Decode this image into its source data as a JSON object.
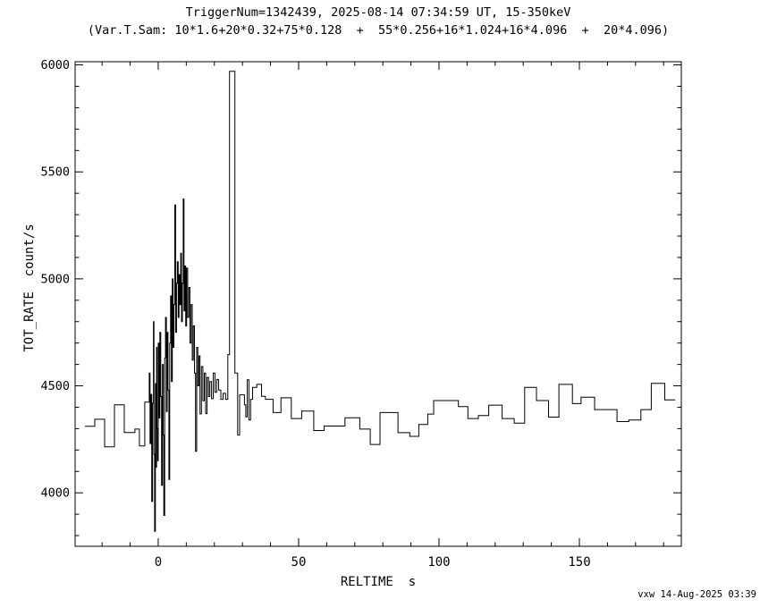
{
  "page": {
    "background_color": "#ffffff",
    "foreground_color": "#000000"
  },
  "header": {
    "title_line1": "TriggerNum=1342439, 2025-08-14 07:34:59 UT, 15-350keV",
    "title_line2": "(Var.T.Sam: 10*1.6+20*0.32+75*0.128  +  55*0.256+16*1.024+16*4.096  +  20*4.096)"
  },
  "footer": {
    "credit": "vxw 14-Aug-2025 03:39"
  },
  "chart_data": {
    "type": "line",
    "style": "step-histogram",
    "title": "TriggerNum=1342439, 2025-08-14 07:34:59 UT, 15-350keV",
    "subtitle": "(Var.T.Sam: 10*1.6+20*0.32+75*0.128  +  55*0.256+16*1.024+16*4.096  +  20*4.096)",
    "xlabel": "RELTIME  s",
    "ylabel": "TOT_RATE  count/s",
    "xlim": [
      -29.6,
      186.3
    ],
    "ylim": [
      3750,
      6015
    ],
    "x_major_ticks": [
      0,
      50,
      100,
      150
    ],
    "x_minor_step": 10,
    "y_major_ticks": [
      4000,
      4500,
      5000,
      5500,
      6000
    ],
    "y_minor_step": 100,
    "grid": false,
    "legend": "none",
    "line_color": "#000000",
    "background": "#ffffff",
    "end_time": 184.1,
    "points": [
      [
        -26.1,
        4311
      ],
      [
        -22.6,
        4344
      ],
      [
        -19.1,
        4215
      ],
      [
        -15.6,
        4411
      ],
      [
        -12.1,
        4282
      ],
      [
        -8.3,
        4298
      ],
      [
        -6.7,
        4219
      ],
      [
        -4.8,
        4424
      ],
      [
        -3.2,
        4560
      ],
      [
        -2.9,
        4230
      ],
      [
        -2.6,
        4460
      ],
      [
        -2.3,
        3960
      ],
      [
        -2.0,
        4420
      ],
      [
        -1.7,
        4800
      ],
      [
        -1.5,
        4180
      ],
      [
        -1.3,
        3820
      ],
      [
        -1.0,
        4510
      ],
      [
        -0.8,
        4120
      ],
      [
        -0.6,
        4680
      ],
      [
        -0.4,
        4300
      ],
      [
        -0.2,
        4150
      ],
      [
        0.0,
        4700
      ],
      [
        0.3,
        4350
      ],
      [
        0.6,
        4750
      ],
      [
        0.9,
        4450
      ],
      [
        1.2,
        4035
      ],
      [
        1.5,
        4600
      ],
      [
        1.8,
        4270
      ],
      [
        2.0,
        3894
      ],
      [
        2.3,
        4630
      ],
      [
        2.6,
        4820
      ],
      [
        2.9,
        4380
      ],
      [
        3.2,
        4750
      ],
      [
        3.5,
        4480
      ],
      [
        3.8,
        4062
      ],
      [
        4.1,
        4700
      ],
      [
        4.4,
        4920
      ],
      [
        4.7,
        4520
      ],
      [
        5.0,
        5000
      ],
      [
        5.3,
        4680
      ],
      [
        5.6,
        4880
      ],
      [
        5.9,
        5345
      ],
      [
        6.2,
        4750
      ],
      [
        6.5,
        4980
      ],
      [
        6.8,
        5080
      ],
      [
        7.1,
        4820
      ],
      [
        7.4,
        5020
      ],
      [
        7.7,
        4880
      ],
      [
        8.0,
        5120
      ],
      [
        8.3,
        4800
      ],
      [
        8.6,
        4980
      ],
      [
        8.9,
        5373
      ],
      [
        9.2,
        4850
      ],
      [
        9.5,
        5060
      ],
      [
        9.8,
        4780
      ],
      [
        10.1,
        5050
      ],
      [
        10.5,
        4820
      ],
      [
        10.9,
        4960
      ],
      [
        11.3,
        4700
      ],
      [
        11.7,
        4880
      ],
      [
        12.1,
        4620
      ],
      [
        12.5,
        4780
      ],
      [
        12.9,
        4560
      ],
      [
        13.3,
        4194
      ],
      [
        13.7,
        4680
      ],
      [
        14.1,
        4500
      ],
      [
        14.5,
        4640
      ],
      [
        14.9,
        4369
      ],
      [
        15.4,
        4590
      ],
      [
        15.9,
        4430
      ],
      [
        16.4,
        4560
      ],
      [
        16.9,
        4370
      ],
      [
        17.4,
        4540
      ],
      [
        17.9,
        4450
      ],
      [
        18.4,
        4520
      ],
      [
        19.0,
        4440
      ],
      [
        19.6,
        4560
      ],
      [
        20.2,
        4470
      ],
      [
        20.8,
        4530
      ],
      [
        21.5,
        4480
      ],
      [
        22.3,
        4437
      ],
      [
        23.1,
        4465
      ],
      [
        24.0,
        4437
      ],
      [
        24.8,
        4646
      ],
      [
        25.4,
        5970
      ],
      [
        27.3,
        4560
      ],
      [
        28.3,
        4270
      ],
      [
        29.0,
        4458
      ],
      [
        30.7,
        4411
      ],
      [
        31.2,
        4355
      ],
      [
        31.7,
        4528
      ],
      [
        32.3,
        4340
      ],
      [
        32.9,
        4437
      ],
      [
        33.6,
        4493
      ],
      [
        35.1,
        4507
      ],
      [
        36.8,
        4451
      ],
      [
        38.2,
        4437
      ],
      [
        40.9,
        4375
      ],
      [
        43.7,
        4444
      ],
      [
        47.4,
        4347
      ],
      [
        51.1,
        4382
      ],
      [
        55.4,
        4291
      ],
      [
        59.1,
        4312
      ],
      [
        66.5,
        4351
      ],
      [
        71.8,
        4298
      ],
      [
        75.5,
        4226
      ],
      [
        79.0,
        4375
      ],
      [
        85.4,
        4281
      ],
      [
        89.6,
        4264
      ],
      [
        92.8,
        4319
      ],
      [
        96.0,
        4368
      ],
      [
        98.1,
        4431
      ],
      [
        106.9,
        4403
      ],
      [
        110.3,
        4347
      ],
      [
        114.0,
        4361
      ],
      [
        117.7,
        4410
      ],
      [
        122.5,
        4347
      ],
      [
        126.8,
        4326
      ],
      [
        130.5,
        4493
      ],
      [
        134.7,
        4431
      ],
      [
        139.0,
        4354
      ],
      [
        142.7,
        4507
      ],
      [
        147.5,
        4417
      ],
      [
        150.6,
        4447
      ],
      [
        155.4,
        4389
      ],
      [
        163.4,
        4333
      ],
      [
        167.6,
        4340
      ],
      [
        171.9,
        4389
      ],
      [
        175.6,
        4512
      ],
      [
        180.4,
        4434
      ]
    ]
  }
}
